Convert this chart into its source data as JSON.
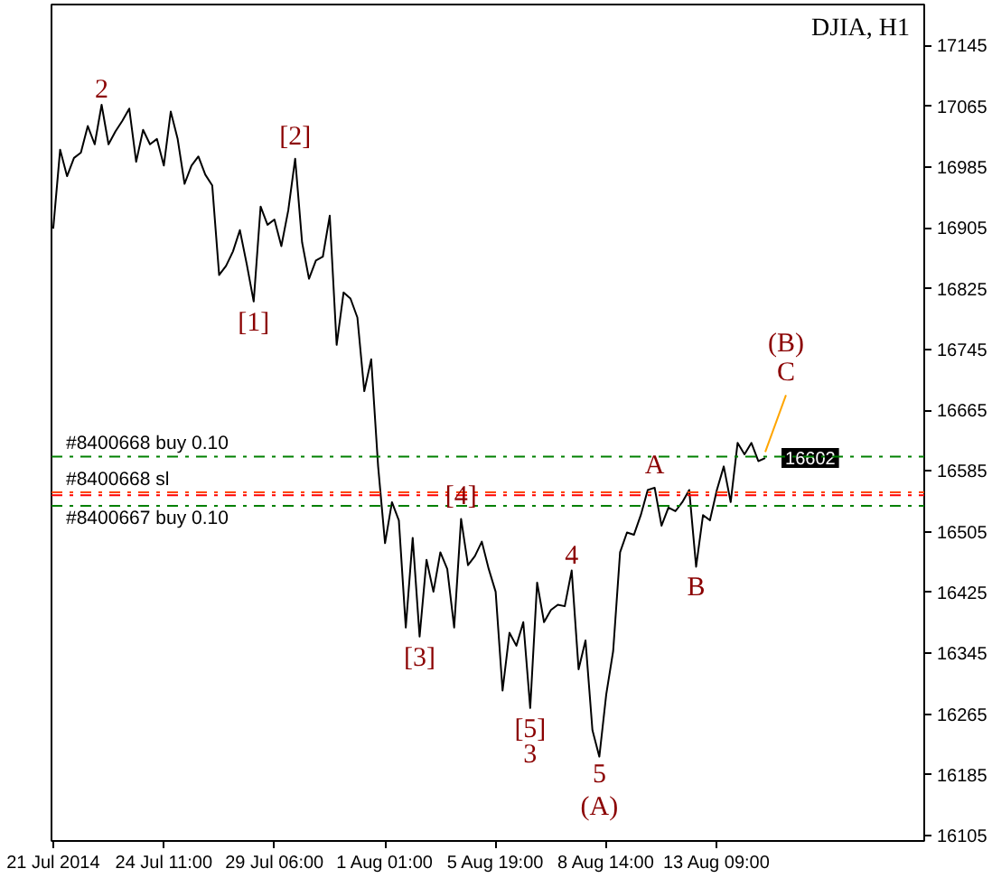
{
  "chart_data": {
    "type": "line",
    "title": "DJIA, H1",
    "categories": [
      "21 Jul 2014",
      null,
      null,
      null,
      null,
      null,
      null,
      null,
      null,
      null,
      null,
      null,
      null,
      null,
      null,
      null,
      "24 Jul 11:00",
      null,
      null,
      null,
      null,
      null,
      null,
      null,
      null,
      null,
      null,
      null,
      null,
      null,
      null,
      null,
      "29 Jul 06:00",
      null,
      null,
      null,
      null,
      null,
      null,
      null,
      null,
      null,
      null,
      null,
      null,
      null,
      null,
      null,
      "1 Aug 01:00",
      null,
      null,
      null,
      null,
      null,
      null,
      null,
      null,
      null,
      null,
      null,
      null,
      null,
      null,
      null,
      "5 Aug 19:00",
      null,
      null,
      null,
      null,
      null,
      null,
      null,
      null,
      null,
      null,
      null,
      null,
      null,
      null,
      null,
      "8 Aug 14:00",
      null,
      null,
      null,
      null,
      null,
      null,
      null,
      null,
      null,
      null,
      null,
      null,
      null,
      null,
      null,
      "13 Aug 09:00",
      null,
      null,
      null,
      null,
      null,
      null,
      null,
      null,
      null,
      null,
      null,
      null,
      null,
      null,
      null,
      null,
      null,
      null,
      null,
      null,
      null,
      null,
      null,
      null,
      null,
      null,
      null,
      null,
      null,
      null
    ],
    "ylim": [
      16098,
      17199
    ],
    "yticks": [
      16105,
      16185,
      16265,
      16345,
      16425,
      16505,
      16585,
      16665,
      16745,
      16825,
      16905,
      16985,
      17065,
      17145
    ],
    "series": [
      {
        "color": "#000000",
        "values": [
          16904,
          17008,
          16973,
          16997,
          17004,
          17039,
          17015,
          17067,
          17015,
          17032,
          17046,
          17062,
          16992,
          17034,
          17015,
          17022,
          16987,
          17058,
          17022,
          16963,
          16987,
          16999,
          16975,
          16961,
          16843,
          16855,
          16874,
          16902,
          16857,
          16808,
          16933,
          16909,
          16916,
          16881,
          16928,
          16996,
          16886,
          16838,
          16862,
          16867,
          16921,
          16751,
          16820,
          16812,
          16787,
          16690,
          16732,
          16591,
          16490,
          16544,
          16520,
          16379,
          16497,
          16367,
          16468,
          16426,
          16478,
          16456,
          16379,
          16522,
          16461,
          16473,
          16492,
          16456,
          16426,
          16296,
          16372,
          16355,
          16386,
          16273,
          16438,
          16386,
          16402,
          16409,
          16407,
          16454,
          16324,
          16362,
          16244,
          16209,
          16291,
          16348,
          16478,
          16504,
          16501,
          16527,
          16560,
          16563,
          16513,
          16537,
          16532,
          16544,
          16560,
          16459,
          16527,
          16520,
          16560,
          16591,
          16544,
          16622,
          16607,
          16622,
          16598,
          16602,
          null,
          null,
          null,
          null,
          null,
          null,
          null,
          null,
          null,
          null,
          null,
          null,
          null,
          null,
          null,
          null,
          null,
          null,
          null,
          null,
          null,
          null,
          null
        ],
        "value_labels": [
          null,
          null,
          null,
          null,
          null,
          null,
          null,
          null,
          null,
          null,
          null,
          null,
          null,
          null,
          null,
          null,
          null,
          null,
          null,
          null,
          null,
          null,
          null,
          null,
          null,
          null,
          null,
          null,
          null,
          null,
          null,
          null,
          null,
          null,
          null,
          null,
          null,
          null,
          null,
          null,
          null,
          null,
          null,
          null,
          null,
          null,
          null,
          null,
          null,
          null,
          null,
          null,
          null,
          null,
          null,
          null,
          null,
          null,
          null,
          null,
          null,
          null,
          null,
          null,
          null,
          null,
          null,
          null,
          null,
          null,
          null,
          null,
          null,
          null,
          null,
          null,
          null,
          null,
          null,
          null,
          null,
          null,
          null,
          null,
          null,
          null,
          null,
          null,
          null,
          null,
          null,
          null,
          null,
          null,
          null,
          null,
          null,
          null,
          null,
          null,
          null,
          null,
          null,
          "16602",
          null,
          null,
          null,
          null,
          null,
          null,
          null,
          null,
          null,
          null,
          null,
          null,
          null,
          null,
          null,
          null,
          null,
          null,
          null,
          null,
          null,
          null,
          null
        ]
      },
      {
        "color": "#ffa500",
        "values": [
          null,
          null,
          null,
          null,
          null,
          null,
          null,
          null,
          null,
          null,
          null,
          null,
          null,
          null,
          null,
          null,
          null,
          null,
          null,
          null,
          null,
          null,
          null,
          null,
          null,
          null,
          null,
          null,
          null,
          null,
          null,
          null,
          null,
          null,
          null,
          null,
          null,
          null,
          null,
          null,
          null,
          null,
          null,
          null,
          null,
          null,
          null,
          null,
          null,
          null,
          null,
          null,
          null,
          null,
          null,
          null,
          null,
          null,
          null,
          null,
          null,
          null,
          null,
          null,
          null,
          null,
          null,
          null,
          null,
          null,
          null,
          null,
          null,
          null,
          null,
          null,
          null,
          null,
          null,
          null,
          null,
          null,
          null,
          null,
          null,
          null,
          null,
          null,
          null,
          null,
          null,
          null,
          null,
          null,
          null,
          null,
          null,
          null,
          null,
          null,
          null,
          null,
          null,
          16610,
          16635,
          16660,
          16685,
          null,
          null,
          null,
          null,
          null,
          null,
          null,
          null,
          null,
          null,
          null,
          null,
          null,
          null,
          null,
          null,
          null,
          null,
          null,
          null
        ]
      }
    ],
    "ref_lines": [
      {
        "axis": "y",
        "value": 16604,
        "label": "#8400668 buy 0.10",
        "color": "#008000",
        "line_style": "dashdot"
      },
      {
        "axis": "y",
        "value": 16557,
        "label": "#8400668 sl",
        "color": "#ff4500",
        "line_style": "dashdot"
      },
      {
        "axis": "y",
        "value": 16553,
        "color": "#ff0000",
        "line_style": "dashdot"
      },
      {
        "axis": "y",
        "value": 16539,
        "label": "#8400667 buy 0.10",
        "color": "#008000",
        "line_style": "dashdot"
      }
    ],
    "annotations": [
      {
        "text": "2",
        "y": 17067
      },
      {
        "text": "[1]",
        "y": 16808
      },
      {
        "text": "[2]",
        "y": 16996
      },
      {
        "text": "[3]",
        "y": 16367
      },
      {
        "text": "[4]",
        "y": 16522
      },
      {
        "text": "[5]",
        "y": 16273
      },
      {
        "text": "3",
        "y": 16273
      },
      {
        "text": "4",
        "y": 16454
      },
      {
        "text": "5",
        "y": 16209
      },
      {
        "text": "(A)",
        "y": 16209
      },
      {
        "text": "A",
        "y": 16563
      },
      {
        "text": "B",
        "y": 16459
      },
      {
        "text": "C",
        "y": 16685
      },
      {
        "text": "(B)",
        "y": 16685
      }
    ]
  }
}
